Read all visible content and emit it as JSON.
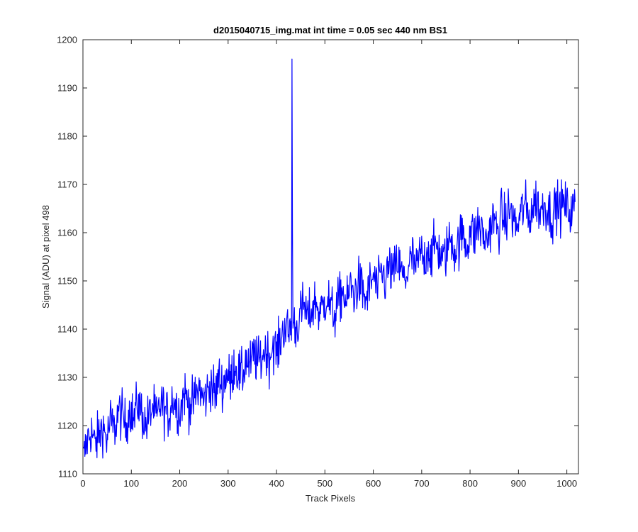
{
  "chart_data": {
    "type": "line",
    "title": "d2015040715_img.mat int time = 0.05 sec  440 nm BS1",
    "xlabel": "Track Pixels",
    "ylabel": "Signal (ADU) at pixel 498",
    "xlim": [
      0,
      1024
    ],
    "ylim": [
      1110,
      1200
    ],
    "xticks": [
      0,
      100,
      200,
      300,
      400,
      500,
      600,
      700,
      800,
      900,
      1000
    ],
    "yticks": [
      1110,
      1120,
      1130,
      1140,
      1150,
      1160,
      1170,
      1180,
      1190,
      1200
    ],
    "line_color": "#0000ff",
    "grid": false,
    "box": true,
    "series": [
      {
        "x_start": 1,
        "x_step": 8,
        "values": [
          1113,
          1117,
          1119,
          1116,
          1118,
          1120,
          1117,
          1121,
          1119,
          1123,
          1122,
          1120,
          1124,
          1121,
          1125,
          1123,
          1120,
          1122,
          1124,
          1121,
          1125,
          1123,
          1122,
          1126,
          1124,
          1123,
          1127,
          1125,
          1124,
          1126,
          1128,
          1125,
          1127,
          1129,
          1126,
          1130,
          1128,
          1131,
          1129,
          1133,
          1131,
          1130,
          1134,
          1132,
          1135,
          1133,
          1134,
          1136,
          1134,
          1137,
          1135,
          1138,
          1141,
          1139,
          1142,
          1140,
          1143,
          1145,
          1142,
          1144,
          1146,
          1143,
          1145,
          1147,
          1144,
          1143,
          1146,
          1148,
          1145,
          1149,
          1147,
          1150,
          1148,
          1146,
          1149,
          1151,
          1148,
          1152,
          1150,
          1153,
          1151,
          1154,
          1152,
          1150,
          1153,
          1155,
          1152,
          1156,
          1154,
          1157,
          1155,
          1158,
          1156,
          1154,
          1157,
          1159,
          1156,
          1158,
          1160,
          1157,
          1161,
          1159,
          1162,
          1160,
          1158,
          1161,
          1163,
          1160,
          1164,
          1162,
          1165,
          1163,
          1161,
          1164,
          1166,
          1163,
          1165,
          1167,
          1164,
          1166,
          1165,
          1163,
          1166,
          1165,
          1166,
          1165,
          1164,
          1166
        ]
      }
    ],
    "peaks": [
      {
        "x": 432,
        "y": 1196
      },
      {
        "x": 433,
        "y": 1160
      }
    ]
  }
}
